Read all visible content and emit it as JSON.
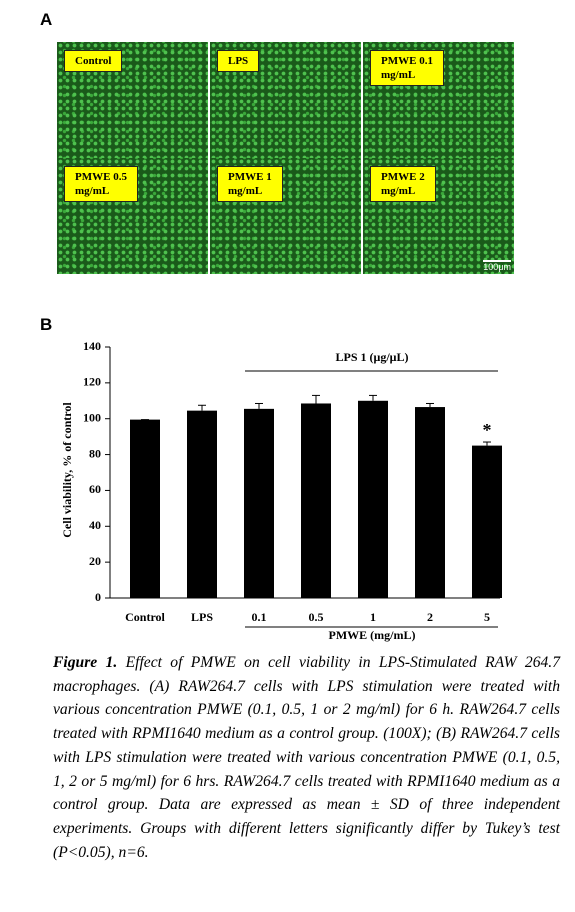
{
  "panel_a": {
    "label": "A",
    "images": [
      {
        "label": "Control"
      },
      {
        "label": "LPS"
      },
      {
        "label": "PMWE 0.1\nmg/mL"
      },
      {
        "label": "PMWE 0.5\nmg/mL"
      },
      {
        "label": "PMWE 1\nmg/mL"
      },
      {
        "label": "PMWE 2\nmg/mL"
      }
    ],
    "scale_bar": "100μm"
  },
  "chart_data": {
    "type": "bar",
    "panel_label": "B",
    "y_label": "Cell viability, % of control",
    "x_label": "PMWE (mg/mL)",
    "bracket_label": "LPS 1 (μg/μL)",
    "categories": [
      "Control",
      "LPS",
      "0.1",
      "0.5",
      "1",
      "2",
      "5"
    ],
    "values": [
      99.5,
      104.5,
      105.5,
      108.5,
      110,
      106.5,
      85
    ],
    "errors": [
      0,
      3,
      3,
      4.5,
      3,
      2,
      2
    ],
    "markers": [
      null,
      null,
      null,
      null,
      null,
      null,
      "*"
    ],
    "color": "#000000",
    "ylim": [
      0,
      140
    ],
    "yticks": [
      0,
      20,
      40,
      60,
      80,
      100,
      120,
      140
    ]
  },
  "caption": {
    "label": "Figure 1.",
    "text": "Effect of PMWE on cell viability in LPS-Stimulated RAW 264.7 macrophages. (A) RAW264.7 cells with LPS stimulation were treated with various concentration PMWE (0.1, 0.5, 1 or 2 mg/ml) for 6 h. RAW264.7 cells treated with RPMI1640 medium as a control group. (100X); (B) RAW264.7 cells with LPS stimulation were treated with various concentration PMWE (0.1, 0.5, 1, 2 or 5 mg/ml) for 6 hrs. RAW264.7 cells treated with RPMI1640 medium as a control group. Data are expressed as mean ± SD of three independent experiments. Groups with different letters significantly differ by Tukey’s test (P<0.05), n=6."
  }
}
